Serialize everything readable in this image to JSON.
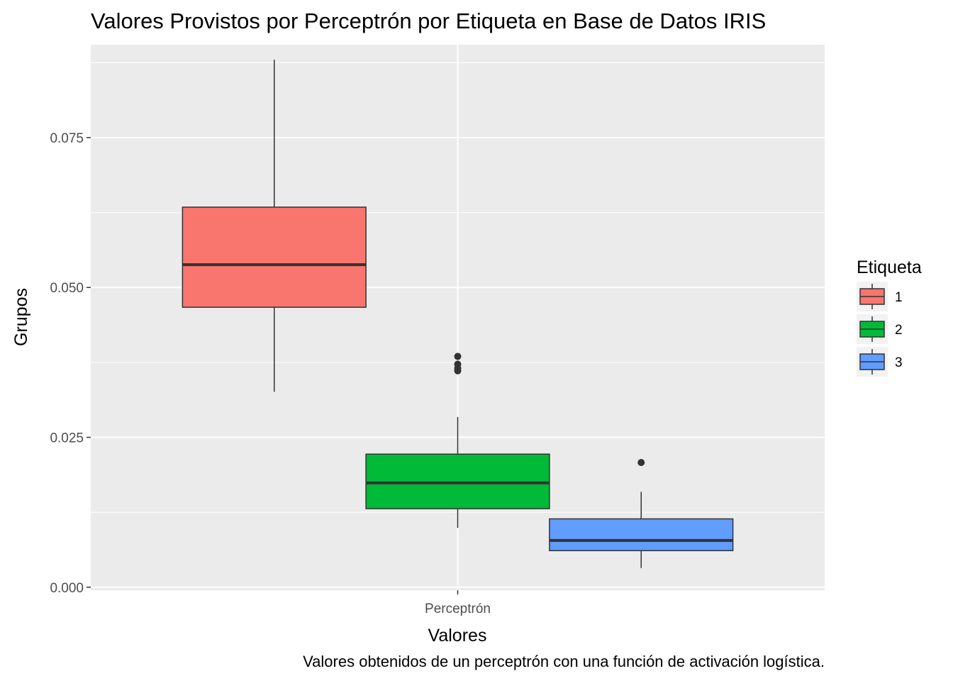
{
  "chart_data": {
    "type": "boxplot",
    "title": "Valores Provistos por Perceptrón por Etiqueta en Base de Datos IRIS",
    "xlabel": "Valores",
    "ylabel": "Grupos",
    "caption": "Valores obtenidos de un perceptrón con una función de activación logística.",
    "categories": [
      "Perceptrón"
    ],
    "ylim": [
      -0.0005,
      0.0905
    ],
    "y_ticks": [
      {
        "value": 0.0,
        "label": "0.000"
      },
      {
        "value": 0.025,
        "label": "0.025"
      },
      {
        "value": 0.05,
        "label": "0.050"
      },
      {
        "value": 0.075,
        "label": "0.075"
      }
    ],
    "grid": true,
    "legend": {
      "title": "Etiqueta",
      "position": "right",
      "items": [
        "1",
        "2",
        "3"
      ]
    },
    "series": [
      {
        "name": "1",
        "color": "#F8766D",
        "min": 0.0326,
        "q1": 0.0467,
        "median": 0.0538,
        "q3": 0.0634,
        "max": 0.088,
        "outliers": []
      },
      {
        "name": "2",
        "color": "#00BA38",
        "min": 0.0099,
        "q1": 0.0131,
        "median": 0.0174,
        "q3": 0.0222,
        "max": 0.0284,
        "outliers": [
          0.0361,
          0.0365,
          0.0372,
          0.0385
        ]
      },
      {
        "name": "3",
        "color": "#619CFF",
        "min": 0.0032,
        "q1": 0.0061,
        "median": 0.0078,
        "q3": 0.0114,
        "max": 0.0159,
        "outliers": [
          0.0208
        ]
      }
    ]
  }
}
